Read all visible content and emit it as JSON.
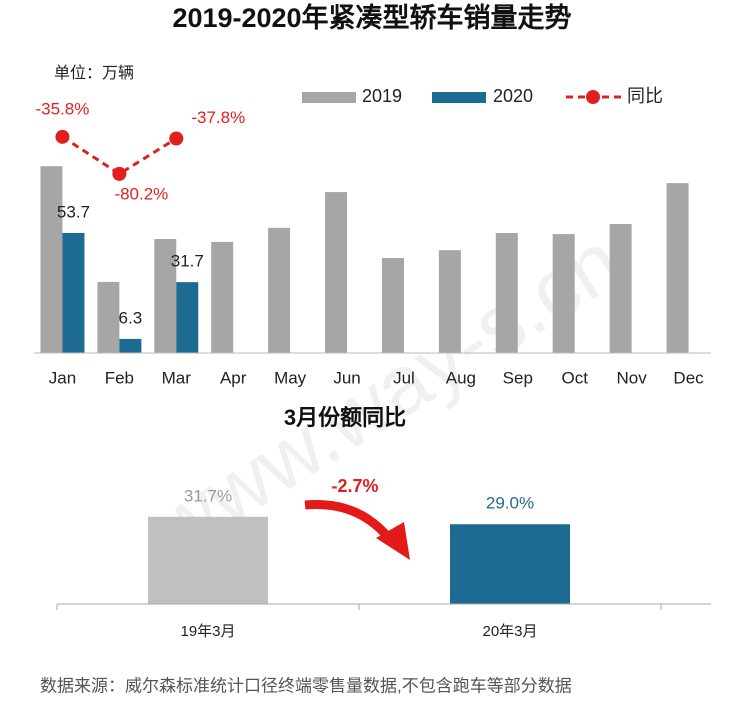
{
  "chart_data": [
    {
      "type": "bar",
      "title": "2019-2020年紧凑型轿车销量走势",
      "subtitle": "单位：万辆",
      "categories": [
        "Jan",
        "Feb",
        "Mar",
        "Apr",
        "May",
        "Jun",
        "Jul",
        "Aug",
        "Sep",
        "Oct",
        "Nov",
        "Dec"
      ],
      "series": [
        {
          "name": "2019",
          "color": "#a6a6a6",
          "values": [
            83.6,
            31.8,
            51.0,
            49.7,
            56,
            72,
            42.5,
            46,
            53.7,
            53.2,
            57.7,
            76
          ]
        },
        {
          "name": "2020",
          "color": "#1d6a93",
          "values": [
            53.7,
            6.3,
            31.7,
            null,
            null,
            null,
            null,
            null,
            null,
            null,
            null,
            null
          ]
        },
        {
          "name": "同比",
          "color": "#e02020",
          "type": "line",
          "axis": "y2",
          "values": [
            -35.8,
            -80.2,
            -37.8,
            null,
            null,
            null,
            null,
            null,
            null,
            null,
            null,
            null
          ],
          "value_labels": [
            "-35.8%",
            "-80.2%",
            "-37.8%",
            null,
            null,
            null,
            null,
            null,
            null,
            null,
            null,
            null
          ]
        }
      ],
      "ylim": [
        0,
        100
      ],
      "y2lim": [
        -295,
        -27
      ]
    },
    {
      "type": "bar",
      "title": "3月份额同比",
      "categories": [
        "19年3月",
        "20年3月"
      ],
      "values": [
        31.7,
        29.0
      ],
      "value_labels": [
        "31.7%",
        "29.0%"
      ],
      "colors": [
        "#c0c0c0",
        "#1d6a93"
      ],
      "ylim": [
        0,
        40
      ],
      "annotation": "-2.7%"
    }
  ],
  "footer": {
    "source": "数据来源：威尔森标准统计口径终端零售量数据,不包含跑车等部分数据"
  },
  "watermark": "www.way-s.cn"
}
